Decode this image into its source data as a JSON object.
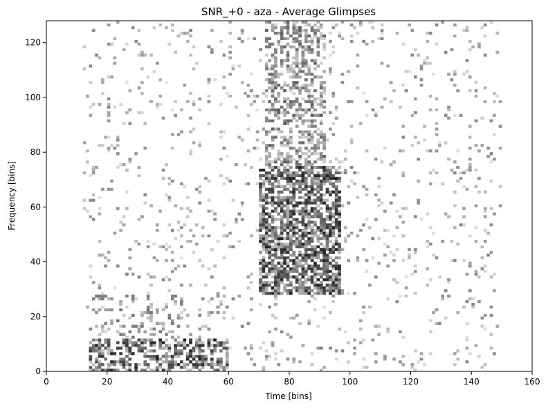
{
  "chart_data": {
    "type": "heatmap",
    "title": "SNR_+0 - aza - Average Glimpses",
    "xlabel": "Time [bins]",
    "ylabel": "Frequency [bins]",
    "xlim": [
      0,
      160
    ],
    "ylim": [
      0,
      128
    ],
    "xticks": [
      "0",
      "20",
      "40",
      "60",
      "80",
      "100",
      "120",
      "140",
      "160"
    ],
    "yticks": [
      "0",
      "20",
      "40",
      "60",
      "80",
      "100",
      "120"
    ],
    "colormap": "gray_r (white = 0, darker = more glimpses)",
    "grid": false,
    "data_description_regions": [
      {
        "x": [
          14,
          60
        ],
        "y": [
          0,
          12
        ],
        "density": 0.55,
        "level": 0.55
      },
      {
        "x": [
          15,
          45
        ],
        "y": [
          12,
          28
        ],
        "density": 0.25,
        "level": 0.35
      },
      {
        "x": [
          70,
          97
        ],
        "y": [
          28,
          75
        ],
        "density": 0.7,
        "level": 0.55
      },
      {
        "x": [
          72,
          92
        ],
        "y": [
          75,
          128
        ],
        "density": 0.45,
        "level": 0.4
      },
      {
        "x": [
          12,
          150
        ],
        "y": [
          0,
          128
        ],
        "density": 0.06,
        "level": 0.3
      }
    ]
  },
  "colors": {
    "axes": "#000000",
    "background": "#ffffff"
  }
}
